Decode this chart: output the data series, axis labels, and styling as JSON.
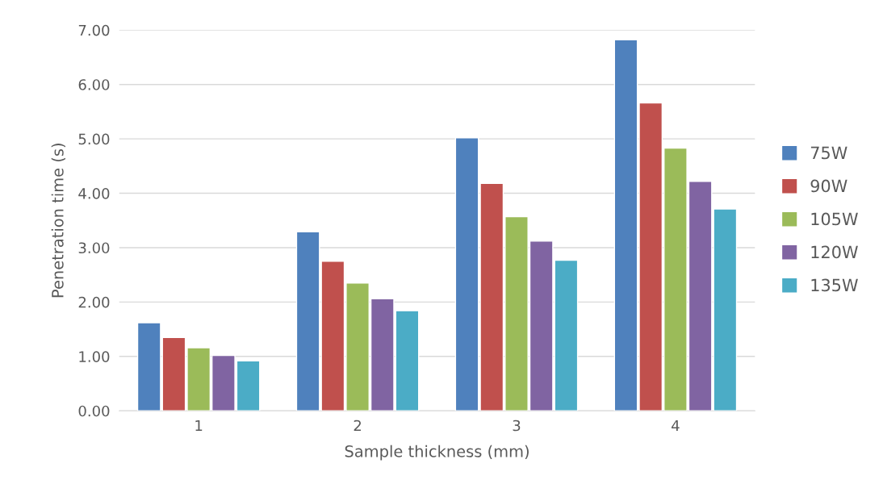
{
  "chart_data": {
    "type": "bar",
    "xlabel": "Sample thickness (mm)",
    "ylabel": "Penetration time (s)",
    "categories": [
      "1",
      "2",
      "3",
      "4"
    ],
    "series": [
      {
        "name": "75W",
        "color": "#4f81bd",
        "values": [
          1.62,
          3.29,
          5.02,
          6.82
        ]
      },
      {
        "name": "90W",
        "color": "#c0504d",
        "values": [
          1.35,
          2.75,
          4.18,
          5.66
        ]
      },
      {
        "name": "105W",
        "color": "#9bbb59",
        "values": [
          1.16,
          2.35,
          3.57,
          4.83
        ]
      },
      {
        "name": "120W",
        "color": "#8064a2",
        "values": [
          1.02,
          2.06,
          3.12,
          4.22
        ]
      },
      {
        "name": "135W",
        "color": "#4bacc6",
        "values": [
          0.92,
          1.84,
          2.77,
          3.71
        ]
      }
    ],
    "ylim": [
      0,
      7
    ],
    "yticks": [
      {
        "value": 0,
        "label": "0.00"
      },
      {
        "value": 1,
        "label": "1.00"
      },
      {
        "value": 2,
        "label": "2.00"
      },
      {
        "value": 3,
        "label": "3.00"
      },
      {
        "value": 4,
        "label": "4.00"
      },
      {
        "value": 5,
        "label": "5.00"
      },
      {
        "value": 6,
        "label": "6.00"
      },
      {
        "value": 7,
        "label": "7.00"
      }
    ],
    "grid": "y",
    "legend": "right"
  }
}
